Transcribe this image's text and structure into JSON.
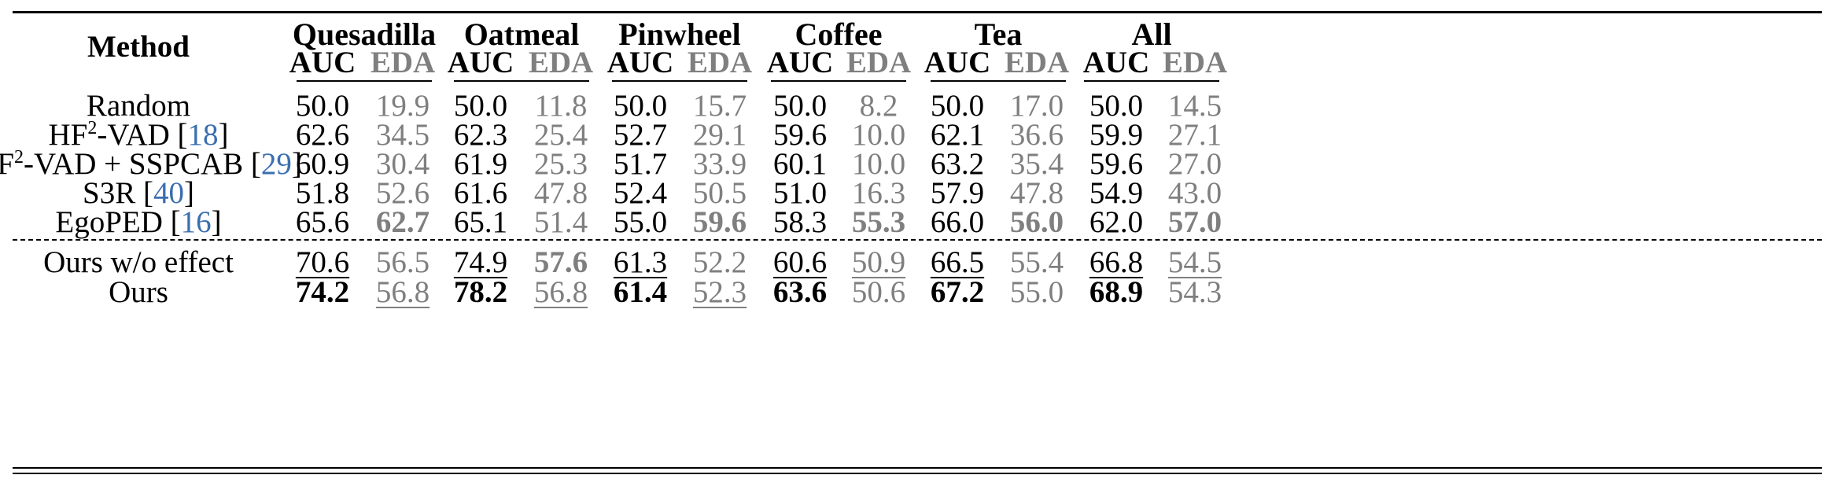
{
  "table": {
    "method_header": "Method",
    "metric_labels": [
      "AUC",
      "EDA"
    ],
    "groups": [
      "Quesadilla",
      "Oatmeal",
      "Pinwheel",
      "Coffee",
      "Tea",
      "All"
    ],
    "rows": [
      {
        "method": {
          "pre": "Random",
          "sup": "",
          "post": "",
          "ref": ""
        },
        "values": [
          [
            "50.0",
            "19.9"
          ],
          [
            "50.0",
            "11.8"
          ],
          [
            "50.0",
            "15.7"
          ],
          [
            "50.0",
            "8.2"
          ],
          [
            "50.0",
            "17.0"
          ],
          [
            "50.0",
            "14.5"
          ]
        ]
      },
      {
        "method": {
          "pre": "HF",
          "sup": "2",
          "post": "-VAD [",
          "ref": "18",
          "end": "]"
        },
        "values": [
          [
            "62.6",
            "34.5"
          ],
          [
            "62.3",
            "25.4"
          ],
          [
            "52.7",
            "29.1"
          ],
          [
            "59.6",
            "10.0"
          ],
          [
            "62.1",
            "36.6"
          ],
          [
            "59.9",
            "27.1"
          ]
        ]
      },
      {
        "method": {
          "pre": "HF",
          "sup": "2",
          "post": "-VAD + SSPCAB [",
          "ref": "29",
          "end": "]"
        },
        "values": [
          [
            "60.9",
            "30.4"
          ],
          [
            "61.9",
            "25.3"
          ],
          [
            "51.7",
            "33.9"
          ],
          [
            "60.1",
            "10.0"
          ],
          [
            "63.2",
            "35.4"
          ],
          [
            "59.6",
            "27.0"
          ]
        ]
      },
      {
        "method": {
          "pre": "S3R [",
          "sup": "",
          "post": "",
          "ref": "40",
          "end": "]"
        },
        "values": [
          [
            "51.8",
            "52.6"
          ],
          [
            "61.6",
            "47.8"
          ],
          [
            "52.4",
            "50.5"
          ],
          [
            "51.0",
            "16.3"
          ],
          [
            "57.9",
            "47.8"
          ],
          [
            "54.9",
            "43.0"
          ]
        ]
      },
      {
        "method": {
          "pre": "EgoPED [",
          "sup": "",
          "post": "",
          "ref": "16",
          "end": "]"
        },
        "values": [
          [
            "65.6",
            "62.7"
          ],
          [
            "65.1",
            "51.4"
          ],
          [
            "55.0",
            "59.6"
          ],
          [
            "58.3",
            "55.3"
          ],
          [
            "66.0",
            "56.0"
          ],
          [
            "62.0",
            "57.0"
          ]
        ]
      },
      {
        "method": {
          "pre": "Ours w/o effect",
          "sup": "",
          "post": "",
          "ref": "",
          "end": ""
        },
        "values": [
          [
            "70.6",
            "56.5"
          ],
          [
            "74.9",
            "57.6"
          ],
          [
            "61.3",
            "52.2"
          ],
          [
            "60.6",
            "50.9"
          ],
          [
            "66.5",
            "55.4"
          ],
          [
            "66.8",
            "54.5"
          ]
        ]
      },
      {
        "method": {
          "pre": "Ours",
          "sup": "",
          "post": "",
          "ref": "",
          "end": ""
        },
        "values": [
          [
            "74.2",
            "56.8"
          ],
          [
            "78.2",
            "56.8"
          ],
          [
            "61.4",
            "52.3"
          ],
          [
            "63.6",
            "50.6"
          ],
          [
            "67.2",
            "55.0"
          ],
          [
            "68.9",
            "54.3"
          ]
        ]
      }
    ],
    "bold": [
      [
        4,
        0,
        1
      ],
      [
        4,
        2,
        1
      ],
      [
        4,
        3,
        1
      ],
      [
        4,
        4,
        1
      ],
      [
        4,
        5,
        1
      ],
      [
        5,
        1,
        1
      ],
      [
        6,
        0,
        0
      ],
      [
        6,
        1,
        0
      ],
      [
        6,
        2,
        0
      ],
      [
        6,
        3,
        0
      ],
      [
        6,
        4,
        0
      ],
      [
        6,
        5,
        0
      ]
    ],
    "underline": [
      [
        5,
        0,
        0
      ],
      [
        5,
        1,
        0
      ],
      [
        5,
        2,
        0
      ],
      [
        5,
        3,
        0
      ],
      [
        5,
        4,
        0
      ],
      [
        5,
        5,
        0
      ],
      [
        5,
        3,
        1
      ],
      [
        5,
        5,
        1
      ],
      [
        6,
        0,
        1
      ],
      [
        6,
        1,
        1
      ],
      [
        6,
        2,
        1
      ]
    ]
  }
}
